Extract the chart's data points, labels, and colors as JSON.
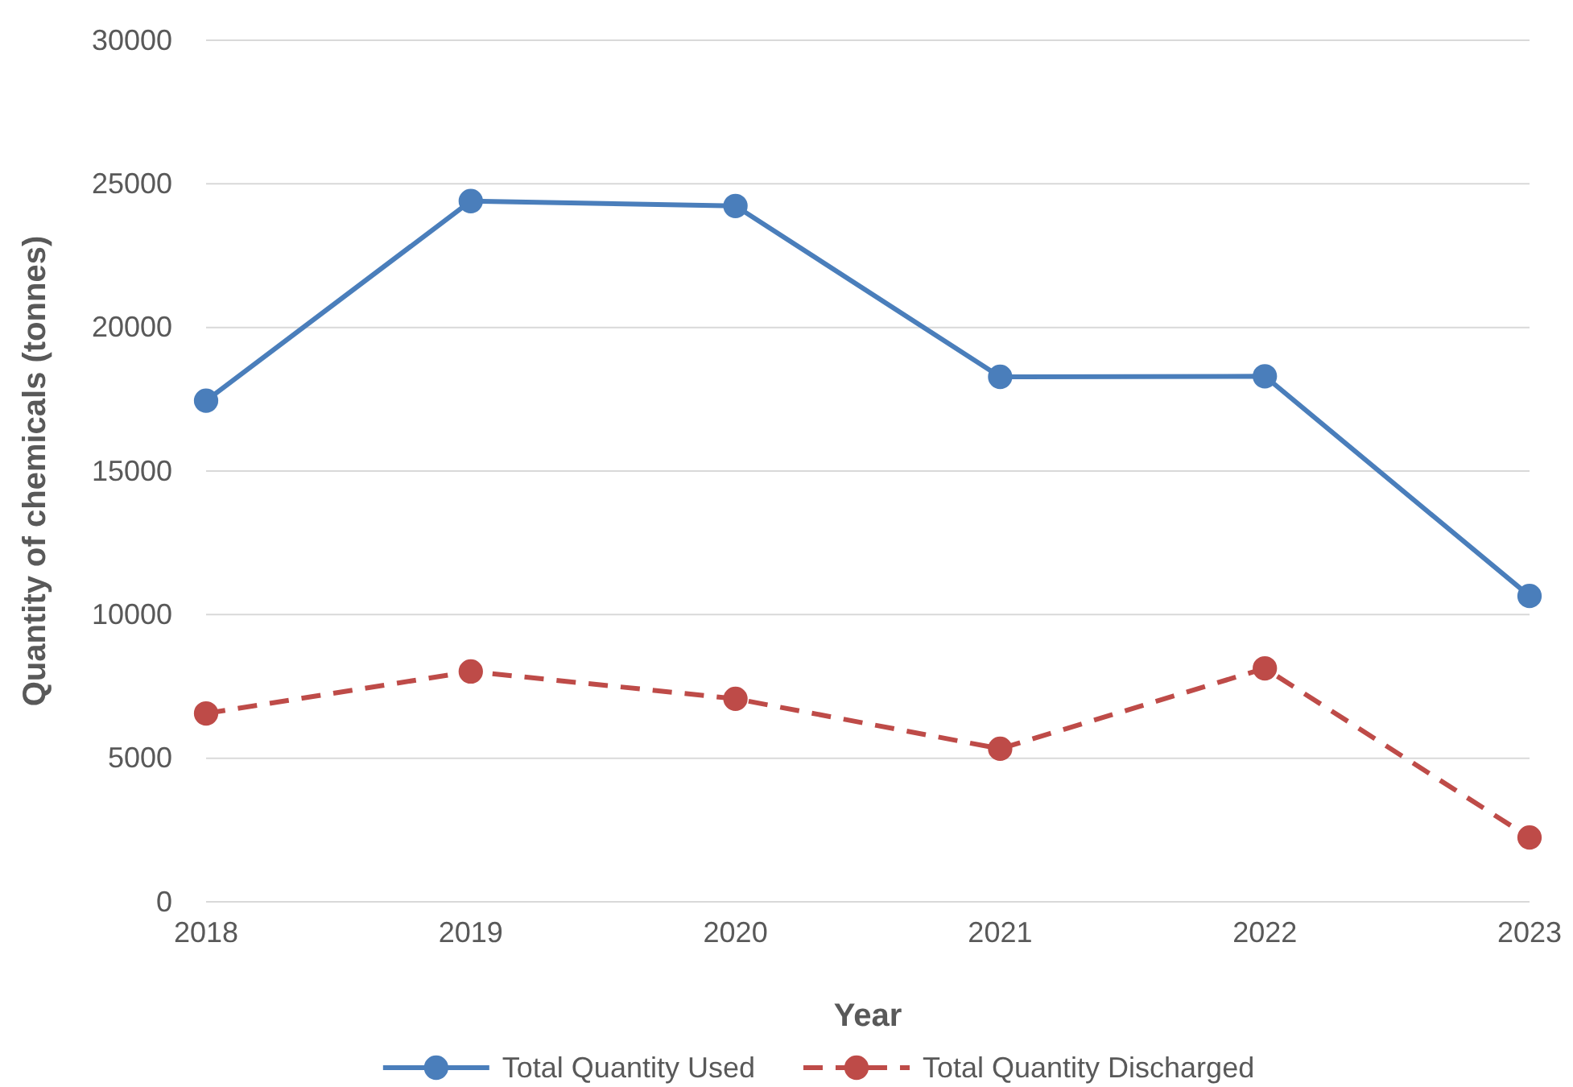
{
  "chart_data": {
    "type": "line",
    "xlabel": "Year",
    "ylabel": "Quantity of chemicals (tonnes)",
    "x": [
      2018,
      2019,
      2020,
      2021,
      2022,
      2023
    ],
    "xlim": [
      2018,
      2023
    ],
    "xticks": [
      2018,
      2019,
      2020,
      2021,
      2022,
      2023
    ],
    "ylim": [
      0,
      30000
    ],
    "yticks": [
      0,
      5000,
      10000,
      15000,
      20000,
      25000,
      30000
    ],
    "grid": "y",
    "legend": "bottom",
    "marker": "circle",
    "series": [
      {
        "name": "Total Quantity Used",
        "color": "#4a7ebb",
        "line_style": "solid",
        "values": [
          17450,
          24400,
          24230,
          18280,
          18300,
          10650
        ]
      },
      {
        "name": "Total Quantity Discharged",
        "color": "#be4b48",
        "line_style": "dashed",
        "values": [
          6560,
          8020,
          7070,
          5330,
          8130,
          2240
        ]
      }
    ]
  }
}
